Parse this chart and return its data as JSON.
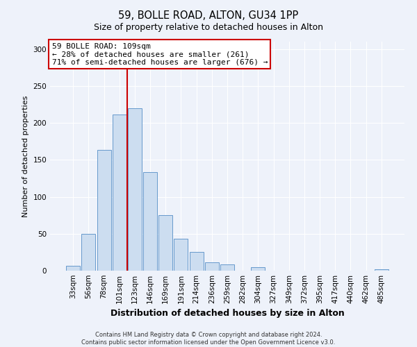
{
  "title": "59, BOLLE ROAD, ALTON, GU34 1PP",
  "subtitle": "Size of property relative to detached houses in Alton",
  "xlabel": "Distribution of detached houses by size in Alton",
  "ylabel": "Number of detached properties",
  "bar_labels": [
    "33sqm",
    "56sqm",
    "78sqm",
    "101sqm",
    "123sqm",
    "146sqm",
    "169sqm",
    "191sqm",
    "214sqm",
    "236sqm",
    "259sqm",
    "282sqm",
    "304sqm",
    "327sqm",
    "349sqm",
    "372sqm",
    "395sqm",
    "417sqm",
    "440sqm",
    "462sqm",
    "485sqm"
  ],
  "bar_values": [
    7,
    50,
    163,
    211,
    220,
    133,
    75,
    43,
    25,
    11,
    8,
    0,
    5,
    0,
    0,
    0,
    0,
    0,
    0,
    0,
    2
  ],
  "bar_color": "#ccddf0",
  "bar_edge_color": "#6699cc",
  "property_label": "59 BOLLE ROAD: 109sqm",
  "annotation_line1": "← 28% of detached houses are smaller (261)",
  "annotation_line2": "71% of semi-detached houses are larger (676) →",
  "vline_x_index": 3.5,
  "vline_color": "#cc0000",
  "annotation_box_color": "#ffffff",
  "annotation_box_edge": "#cc0000",
  "ylim": [
    0,
    310
  ],
  "yticks": [
    0,
    50,
    100,
    150,
    200,
    250,
    300
  ],
  "footer1": "Contains HM Land Registry data © Crown copyright and database right 2024.",
  "footer2": "Contains public sector information licensed under the Open Government Licence v3.0.",
  "bg_color": "#eef2fa",
  "plot_bg_color": "#eef2fa",
  "grid_color": "#ffffff",
  "title_fontsize": 10.5,
  "subtitle_fontsize": 9,
  "ylabel_fontsize": 8,
  "xlabel_fontsize": 9,
  "tick_fontsize": 7.5,
  "annotation_fontsize": 8,
  "footer_fontsize": 6
}
